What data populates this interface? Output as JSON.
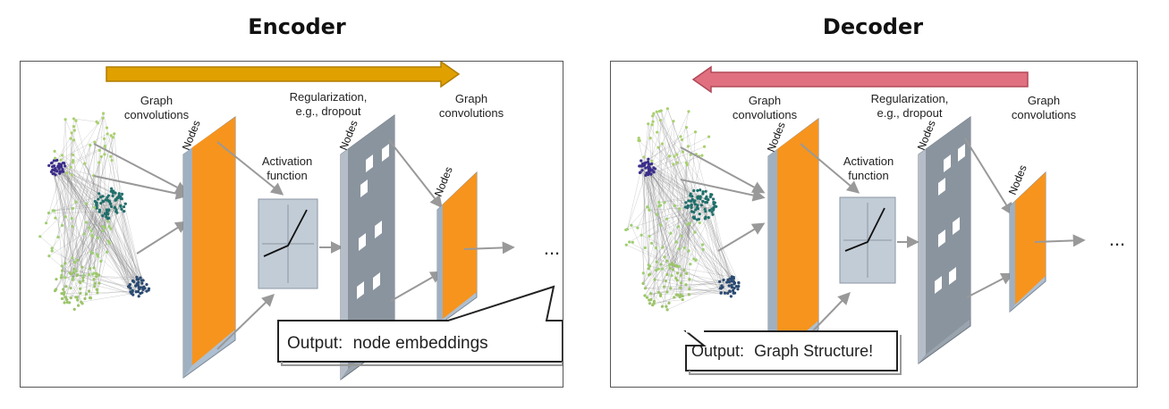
{
  "encoder": {
    "title": "Encoder",
    "labels": {
      "graph_conv_1": [
        "Graph",
        "convolutions"
      ],
      "regularization": [
        "Regularization,",
        "e.g., dropout"
      ],
      "graph_conv_2": [
        "Graph",
        "convolutions"
      ],
      "activation": [
        "Activation",
        "function"
      ],
      "nodes": "Nodes",
      "ellipsis": "..."
    },
    "callout": {
      "key": "Output:",
      "value": "node embeddings"
    },
    "arrow_color": "#e0a000"
  },
  "decoder": {
    "title": "Decoder",
    "labels": {
      "graph_conv_1": [
        "Graph",
        "convolutions"
      ],
      "regularization": [
        "Regularization,",
        "e.g., dropout"
      ],
      "graph_conv_2": [
        "Graph",
        "convolutions"
      ],
      "activation": [
        "Activation",
        "function"
      ],
      "nodes": "Nodes",
      "ellipsis": "..."
    },
    "callout": {
      "key": "Output:",
      "value": "Graph Structure!"
    },
    "arrow_color": "#e07080"
  },
  "colors": {
    "orange_layer": "#f7941d",
    "gray_layer": "#8a949e",
    "activation_box": "#c2ccd6",
    "callout_key": "#cc0f9b"
  }
}
